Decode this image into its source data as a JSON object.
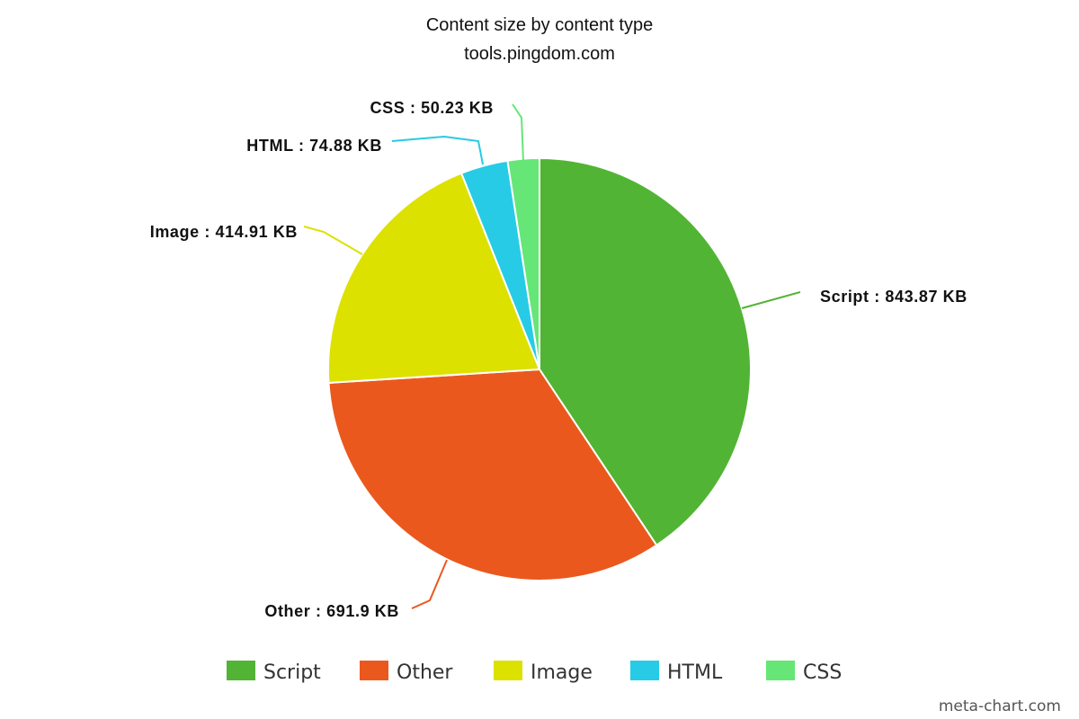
{
  "chart_data": {
    "type": "pie",
    "title": "Content size by content type",
    "subtitle": "tools.pingdom.com",
    "unit": "KB",
    "slices": [
      {
        "name": "Script",
        "value": 843.87,
        "label": "Script : 843.87 KB",
        "color": "#52b434"
      },
      {
        "name": "Other",
        "value": 691.9,
        "label": "Other : 691.9 KB",
        "color": "#eb581d"
      },
      {
        "name": "Image",
        "value": 414.91,
        "label": "Image : 414.91 KB",
        "color": "#dde100"
      },
      {
        "name": "HTML",
        "value": 74.88,
        "label": "HTML : 74.88 KB",
        "color": "#27cbe6"
      },
      {
        "name": "CSS",
        "value": 50.23,
        "label": "CSS : 50.23 KB",
        "color": "#66e677"
      }
    ],
    "legend": {
      "placement": "bottom",
      "entries": [
        "Script",
        "Other",
        "Image",
        "HTML",
        "CSS"
      ]
    }
  },
  "footer": {
    "credit": "meta-chart.com"
  }
}
